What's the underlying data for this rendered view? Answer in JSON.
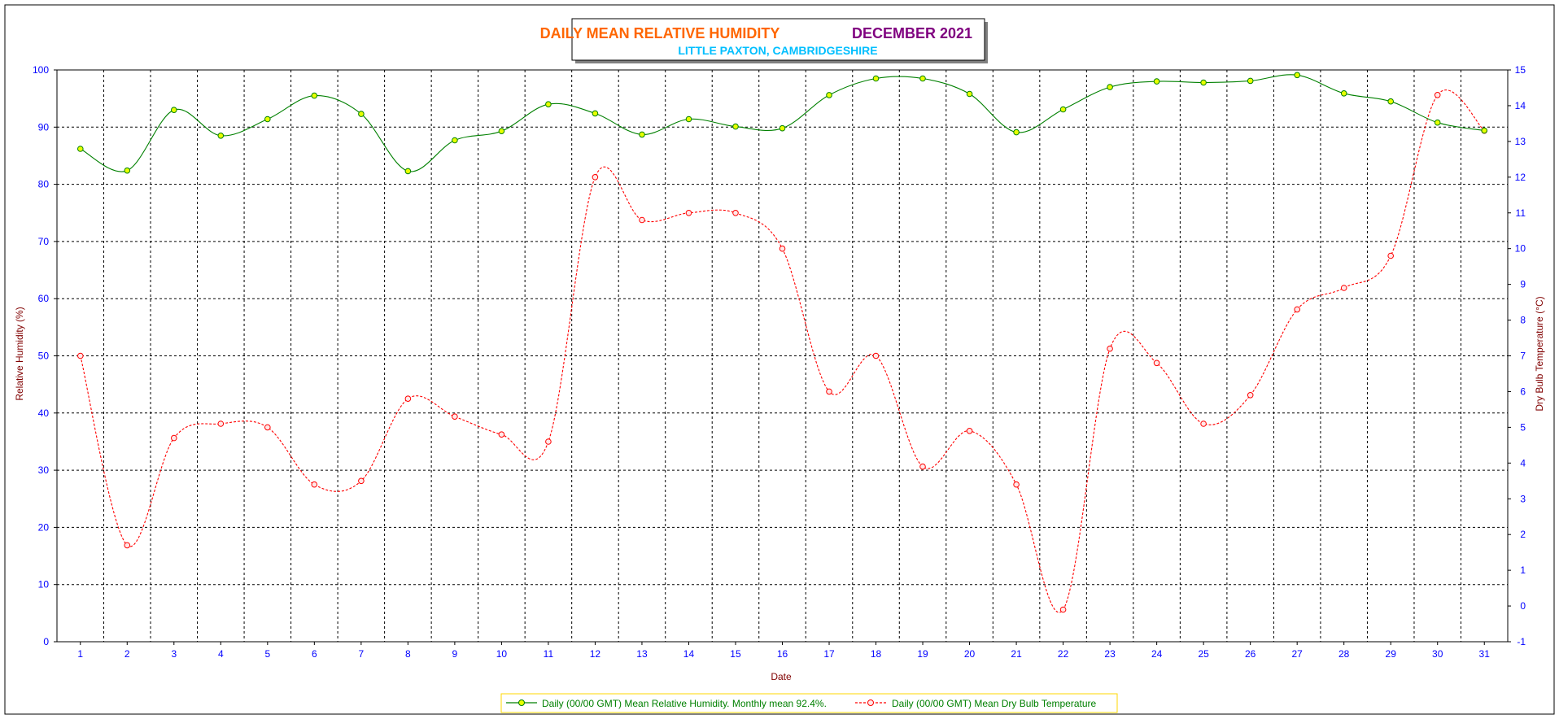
{
  "chart_data": {
    "type": "line",
    "title_part1": "DAILY MEAN RELATIVE HUMIDITY",
    "title_part2": "DECEMBER 2021",
    "subtitle": "LITTLE PAXTON, CAMBRIDGESHIRE",
    "xlabel": "Date",
    "ylabel_left": "Relative Humidity (%)",
    "ylabel_right": "Dry Bulb Temperature (°C)",
    "x": [
      1,
      2,
      3,
      4,
      5,
      6,
      7,
      8,
      9,
      10,
      11,
      12,
      13,
      14,
      15,
      16,
      17,
      18,
      19,
      20,
      21,
      22,
      23,
      24,
      25,
      26,
      27,
      28,
      29,
      30,
      31
    ],
    "xlim": [
      0.5,
      31.5
    ],
    "ylim_left": [
      0,
      100
    ],
    "ylim_right": [
      -1,
      15
    ],
    "yticks_left": [
      0,
      10,
      20,
      30,
      40,
      50,
      60,
      70,
      80,
      90,
      100
    ],
    "yticks_right": [
      -1,
      0,
      1,
      2,
      3,
      4,
      5,
      6,
      7,
      8,
      9,
      10,
      11,
      12,
      13,
      14,
      15
    ],
    "grid": true,
    "legend_position": "bottom-center",
    "series": [
      {
        "name": "Daily (00/00 GMT) Mean Relative Humidity. Monthly mean 92.4%.",
        "axis": "left",
        "color": "#008000",
        "marker_fill": "#e8ff00",
        "style": "solid",
        "values": [
          86.2,
          82.4,
          93.0,
          88.5,
          91.4,
          95.5,
          92.3,
          82.3,
          87.7,
          89.3,
          94.0,
          92.4,
          88.7,
          91.4,
          90.1,
          89.8,
          95.6,
          98.5,
          98.5,
          95.8,
          89.1,
          93.1,
          97.0,
          98.0,
          97.8,
          98.1,
          99.1,
          95.9,
          94.5,
          90.8,
          89.4
        ]
      },
      {
        "name": "Daily (00/00 GMT) Mean Dry Bulb Temperature",
        "axis": "right",
        "color": "#ff0000",
        "marker_fill": "#ffe8e8",
        "style": "dashed",
        "values": [
          7.0,
          1.7,
          4.7,
          5.1,
          5.0,
          3.4,
          3.5,
          5.8,
          5.3,
          4.8,
          4.6,
          12.0,
          10.8,
          11.0,
          11.0,
          10.0,
          6.0,
          7.0,
          3.9,
          4.9,
          3.4,
          -0.1,
          7.2,
          6.8,
          5.1,
          5.9,
          8.3,
          8.9,
          9.8,
          14.3,
          13.3
        ]
      }
    ]
  },
  "colors": {
    "title_part1": "#ff6600",
    "title_part2": "#800080",
    "subtitle": "#00bfff",
    "tick_text": "#0000ff",
    "axis_label": "#800000",
    "grid": "#000000",
    "legend_border": "#ffd700"
  }
}
